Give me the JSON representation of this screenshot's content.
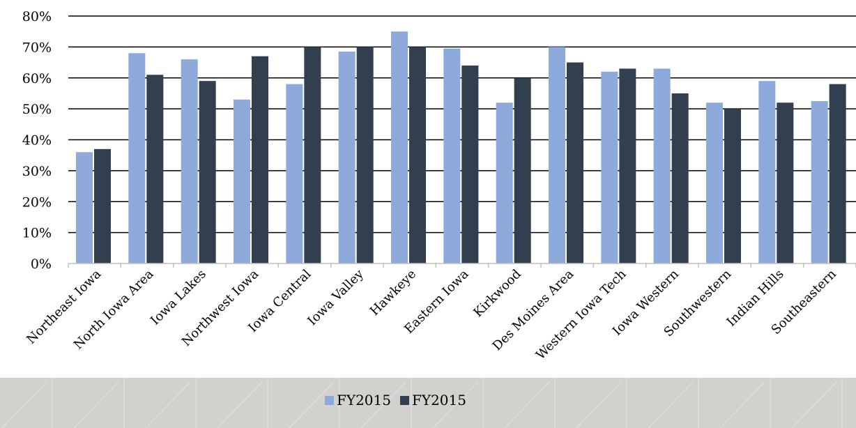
{
  "chart_data": {
    "type": "bar",
    "title": "",
    "xlabel": "",
    "ylabel": "",
    "categories": [
      "Northeast Iowa",
      "North Iowa Area",
      "Iowa Lakes",
      "Northwest Iowa",
      "Iowa Central",
      "Iowa Valley",
      "Hawkeye",
      "Eastern Iowa",
      "Kirkwood",
      "Des Moines Area",
      "Western Iowa Tech",
      "Iowa Western",
      "Southwestern",
      "Indian Hills",
      "Southeastern"
    ],
    "series": [
      {
        "name": "FY2015",
        "color": "#8eaadb",
        "values": [
          36,
          68,
          66,
          53,
          58,
          68.5,
          75,
          69.5,
          52,
          70,
          62,
          63,
          52,
          59,
          52.5
        ]
      },
      {
        "name": "FY2015",
        "color": "#323f4f",
        "values": [
          37,
          61,
          59,
          67,
          70,
          70,
          70,
          64,
          60,
          65,
          63,
          55,
          50,
          52,
          58
        ]
      }
    ],
    "ylim": [
      0,
      80
    ],
    "yticks": [
      0,
      10,
      20,
      30,
      40,
      50,
      60,
      70,
      80
    ],
    "ytick_labels": [
      "0%",
      "10%",
      "20%",
      "30%",
      "40%",
      "50%",
      "60%",
      "70%",
      "80%"
    ],
    "grid": true,
    "legend": "bottom-center"
  }
}
